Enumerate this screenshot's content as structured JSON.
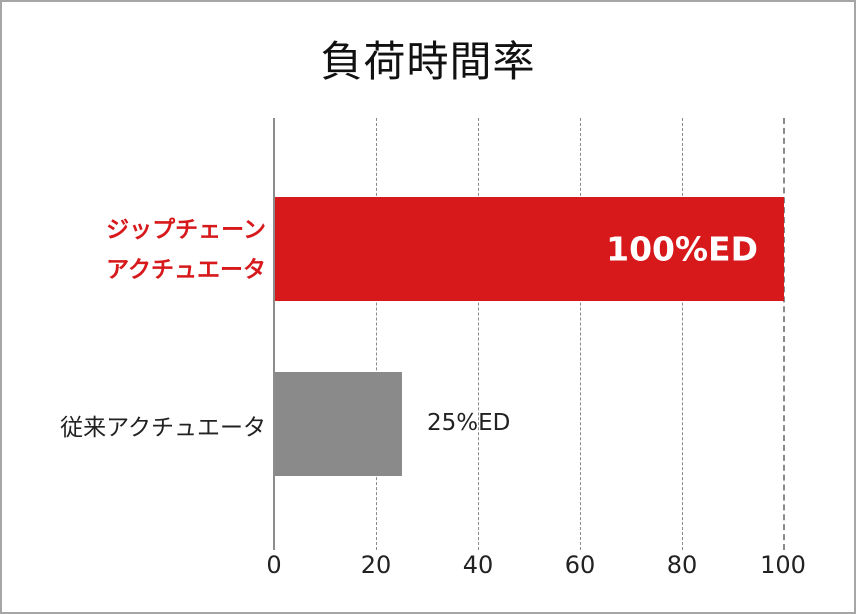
{
  "chart_data": {
    "type": "bar",
    "orientation": "horizontal",
    "title": "負荷時間率",
    "categories": [
      "ジップチェーンアクチュエータ",
      "従来アクチュエータ"
    ],
    "category_label_lines": [
      [
        "ジップチェーン",
        "アクチュエータ"
      ],
      [
        "従来アクチュエータ"
      ]
    ],
    "values": [
      100,
      25
    ],
    "value_labels": [
      "100%ED",
      "25%ED"
    ],
    "xlabel": "",
    "ylabel": "",
    "xlim": [
      0,
      100
    ],
    "xticks": [
      0,
      20,
      40,
      60,
      80,
      100
    ],
    "grid": "vertical dashed",
    "legend": "none",
    "colors": [
      "#d7191c",
      "#8a8a8a"
    ]
  },
  "labels": {
    "title": "負荷時間率",
    "primary_line1": "ジップチェーン",
    "primary_line2": "アクチュエータ",
    "primary_value": "100%ED",
    "secondary": "従来アクチュエータ",
    "secondary_value": "25%ED",
    "ticks": [
      "0",
      "20",
      "40",
      "60",
      "80",
      "100"
    ]
  }
}
